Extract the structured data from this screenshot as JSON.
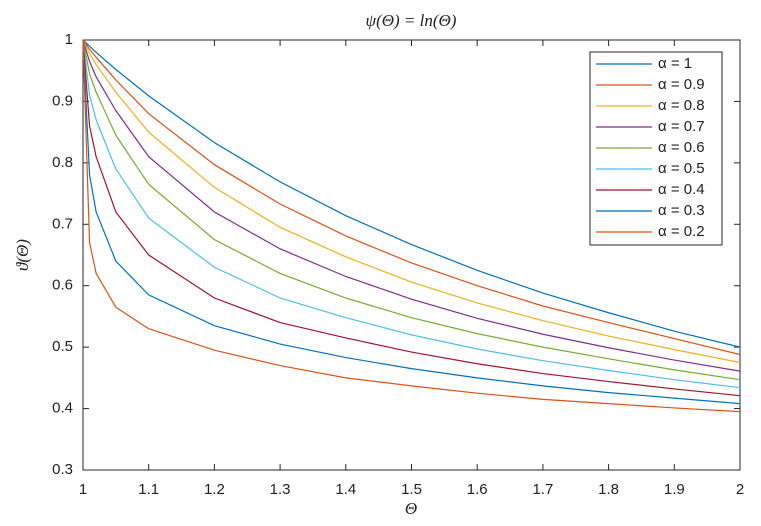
{
  "chart_data": {
    "type": "line",
    "title": "ψ(Θ) = ln(Θ)",
    "x_label": "Θ",
    "y_label": "ϑ(Θ)",
    "x": [
      1,
      1.01,
      1.02,
      1.05,
      1.1,
      1.2,
      1.3,
      1.4,
      1.5,
      1.6,
      1.7,
      1.8,
      1.9,
      2
    ],
    "xlim": [
      1,
      2
    ],
    "ylim": [
      0.3,
      1
    ],
    "xticks": [
      1,
      1.1,
      1.2,
      1.3,
      1.4,
      1.5,
      1.6,
      1.7,
      1.8,
      1.9,
      2
    ],
    "yticks": [
      0.3,
      0.4,
      0.5,
      0.6,
      0.7,
      0.8,
      0.9,
      1
    ],
    "legend": "upper right",
    "series": [
      {
        "name": "α = 1",
        "color": "#0072BD",
        "values": [
          1,
          0.99,
          0.98,
          0.952,
          0.909,
          0.833,
          0.769,
          0.714,
          0.667,
          0.625,
          0.588,
          0.556,
          0.526,
          0.5
        ]
      },
      {
        "name": "α = 0.9",
        "color": "#D95319",
        "values": [
          1,
          0.985,
          0.972,
          0.935,
          0.88,
          0.797,
          0.733,
          0.681,
          0.637,
          0.6,
          0.567,
          0.54,
          0.514,
          0.488
        ]
      },
      {
        "name": "α = 0.8",
        "color": "#EDB120",
        "values": [
          1,
          0.978,
          0.96,
          0.915,
          0.85,
          0.76,
          0.695,
          0.647,
          0.606,
          0.572,
          0.543,
          0.518,
          0.496,
          0.475
        ]
      },
      {
        "name": "α = 0.7",
        "color": "#7E2F8E",
        "values": [
          1,
          0.965,
          0.94,
          0.885,
          0.81,
          0.72,
          0.66,
          0.615,
          0.578,
          0.547,
          0.521,
          0.499,
          0.479,
          0.461
        ]
      },
      {
        "name": "α = 0.6",
        "color": "#77AC30",
        "values": [
          1,
          0.945,
          0.915,
          0.845,
          0.765,
          0.675,
          0.62,
          0.58,
          0.548,
          0.522,
          0.5,
          0.481,
          0.463,
          0.447
        ]
      },
      {
        "name": "α = 0.5",
        "color": "#4DBEEE",
        "values": [
          1,
          0.91,
          0.87,
          0.79,
          0.71,
          0.63,
          0.58,
          0.548,
          0.52,
          0.497,
          0.478,
          0.462,
          0.447,
          0.434
        ]
      },
      {
        "name": "α = 0.4",
        "color": "#A2142F",
        "values": [
          1,
          0.86,
          0.81,
          0.72,
          0.65,
          0.58,
          0.54,
          0.515,
          0.492,
          0.473,
          0.457,
          0.444,
          0.432,
          0.421
        ]
      },
      {
        "name": "α = 0.3",
        "color": "#0072BD",
        "values": [
          1,
          0.78,
          0.72,
          0.64,
          0.585,
          0.535,
          0.505,
          0.483,
          0.465,
          0.45,
          0.437,
          0.426,
          0.417,
          0.408
        ]
      },
      {
        "name": "α = 0.2",
        "color": "#D95319",
        "values": [
          1,
          0.67,
          0.62,
          0.565,
          0.53,
          0.495,
          0.47,
          0.45,
          0.437,
          0.425,
          0.415,
          0.408,
          0.401,
          0.395
        ]
      }
    ]
  }
}
